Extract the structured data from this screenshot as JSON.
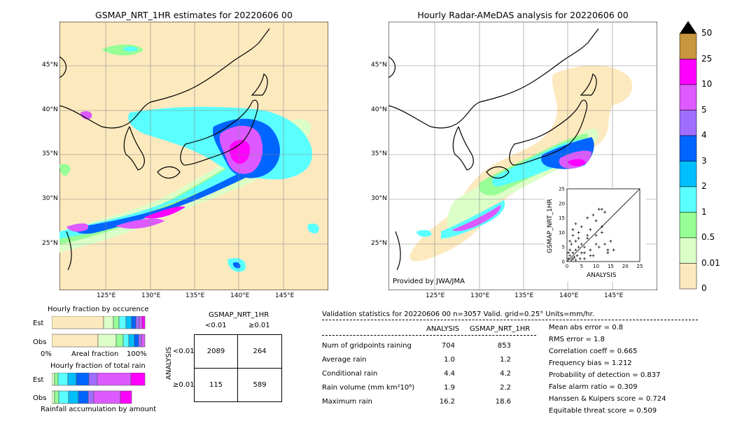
{
  "left_map": {
    "title": "GSMAP_NRT_1HR estimates for 20220606 00",
    "lat_labels": [
      "45°N",
      "40°N",
      "35°N",
      "30°N",
      "25°N"
    ],
    "lon_labels": [
      "125°E",
      "130°E",
      "135°E",
      "140°E",
      "145°E"
    ]
  },
  "right_map": {
    "title": "Hourly Radar-AMeDAS analysis for 20220606 00",
    "lat_labels": [
      "45°N",
      "40°N",
      "35°N",
      "30°N",
      "25°N"
    ],
    "lon_labels": [
      "125°E",
      "130°E",
      "135°E",
      "140°E",
      "145°E"
    ],
    "credit": "Provided by JWA/JMA"
  },
  "colorbar": {
    "labels": [
      "50",
      "25",
      "10",
      "5",
      "4",
      "3",
      "2",
      "1",
      "0.5",
      "0.01",
      "0"
    ],
    "colors": [
      "#c8963c",
      "#ff00ff",
      "#dc5aff",
      "#a06eff",
      "#0064ff",
      "#00bfff",
      "#5affff",
      "#96ff96",
      "#dcffc8",
      "#fde9be"
    ]
  },
  "occurrence_panel": {
    "title": "Hourly fraction by occurence",
    "row_labels": [
      "Est",
      "Obs"
    ],
    "axis_left": "0%",
    "axis_mid": "Areal fraction",
    "axis_right": "100%"
  },
  "total_rain_panel": {
    "title": "Hourly fraction of total rain",
    "row_labels": [
      "Est",
      "Obs"
    ],
    "footer": "Rainfall accumulation by amount"
  },
  "contingency": {
    "title": "GSMAP_NRT_1HR",
    "col_labels": [
      "<0.01",
      "≥0.01"
    ],
    "row_axis": "ANALYSIS",
    "row_labels": [
      "<0.01",
      "≥0.01"
    ],
    "cells": [
      [
        "2089",
        "264"
      ],
      [
        "115",
        "589"
      ]
    ]
  },
  "validation": {
    "header": "Validation statistics for 20220606 00  n=3057 Valid. grid=0.25° Units=mm/hr.",
    "col_analysis": "ANALYSIS",
    "col_gsmap": "GSMAP_NRT_1HR",
    "rows": [
      {
        "name": "Num of gridpoints raining",
        "analysis": "704",
        "gsmap": "853"
      },
      {
        "name": "Average rain",
        "analysis": "1.0",
        "gsmap": "1.2"
      },
      {
        "name": "Conditional rain",
        "analysis": "4.4",
        "gsmap": "4.2"
      },
      {
        "name": "Rain volume (mm km²10⁶)",
        "analysis": "1.9",
        "gsmap": "2.2"
      },
      {
        "name": "Maximum rain",
        "analysis": "16.2",
        "gsmap": "18.6"
      }
    ],
    "scores": [
      "Mean abs error =    0.8",
      "RMS error =    1.8",
      "Correlation coeff =  0.665",
      "Frequency bias =  1.212",
      "Probability of detection =  0.837",
      "False alarm ratio =  0.309",
      "Hanssen & Kuipers score =  0.724",
      "Equitable threat score =  0.509"
    ]
  },
  "chart_data": {
    "type": "scatter",
    "title": "",
    "xlabel": "ANALYSIS",
    "ylabel": "GSMAP_NRT_1HR",
    "xlim": [
      0,
      25
    ],
    "ylim": [
      0,
      25
    ],
    "ticks": [
      "0",
      "5",
      "10",
      "15",
      "20",
      "25"
    ],
    "x": [
      0.5,
      1,
      1.5,
      2,
      2.5,
      3,
      3.5,
      4,
      4.5,
      5,
      6,
      7,
      8,
      9,
      10,
      11,
      12,
      13,
      14,
      15,
      16,
      2,
      3,
      5,
      7,
      9,
      11,
      13,
      1,
      2,
      4,
      6,
      8,
      10,
      12,
      14,
      0.5,
      1.5,
      3,
      4,
      6,
      8,
      10,
      12,
      1,
      2,
      3,
      5,
      7
    ],
    "y": [
      1,
      2,
      0.5,
      3,
      1.5,
      4,
      2,
      5,
      1,
      6,
      3,
      8,
      4,
      2,
      9,
      5,
      10,
      6,
      3,
      7,
      4,
      11,
      13,
      12,
      15,
      16,
      18,
      17,
      7,
      9,
      8,
      5,
      11,
      14,
      18,
      4,
      3,
      6,
      0.5,
      10,
      1,
      2,
      6,
      12,
      4,
      1,
      7,
      3,
      9
    ]
  }
}
